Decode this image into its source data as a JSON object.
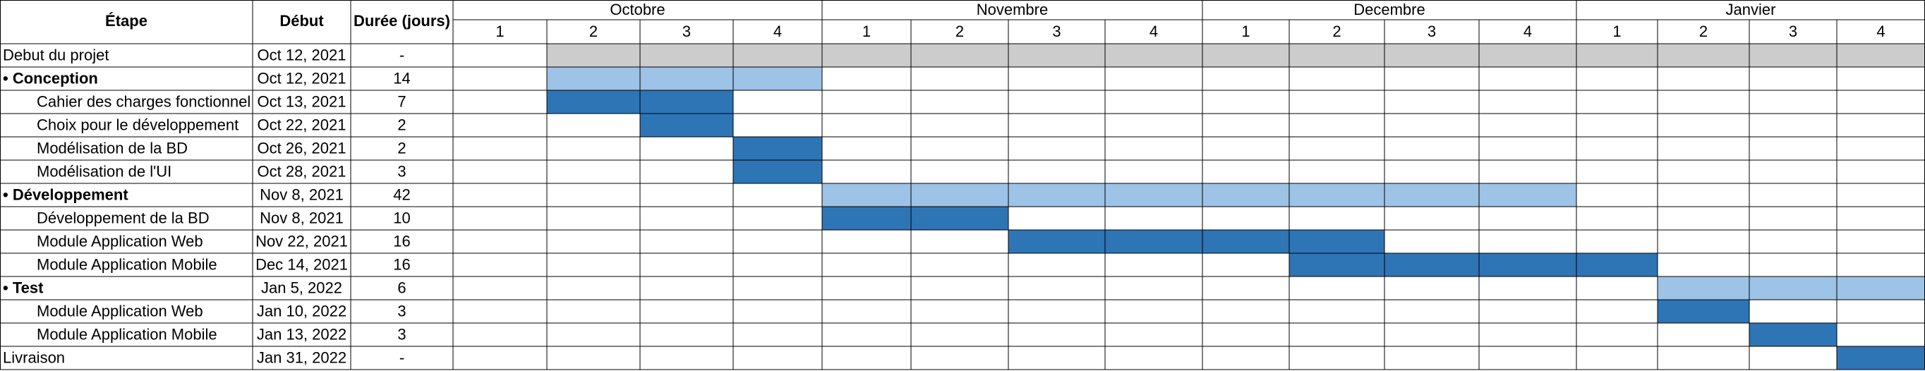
{
  "headers": {
    "task": "Étape",
    "start": "Début",
    "duration": "Durée (jours)"
  },
  "months": [
    {
      "name": "Octobre",
      "weeks": [
        "1",
        "2",
        "3",
        "4"
      ]
    },
    {
      "name": "Novembre",
      "weeks": [
        "1",
        "2",
        "3",
        "4"
      ]
    },
    {
      "name": "Decembre",
      "weeks": [
        "1",
        "2",
        "3",
        "4"
      ]
    },
    {
      "name": "Janvier",
      "weeks": [
        "1",
        "2",
        "3",
        "4"
      ]
    }
  ],
  "colors": {
    "milestone": "#cccccc",
    "phase": "#9dc3e6",
    "task": "#2e75b6",
    "grid": "#000000"
  },
  "chart_data": {
    "type": "table",
    "rows": [
      {
        "label": "Debut du projet",
        "start": "Oct 12, 2021",
        "duration": "-",
        "kind": "milestone",
        "bold": false,
        "bullet": false,
        "indent": false,
        "bar_from": 1,
        "bar_to": 16
      },
      {
        "label": "Conception",
        "start": "Oct 12, 2021",
        "duration": "14",
        "kind": "phase",
        "bold": true,
        "bullet": true,
        "indent": false,
        "bar_from": 1,
        "bar_to": 4
      },
      {
        "label": "Cahier des charges fonctionnel",
        "start": "Oct 13, 2021",
        "duration": "7",
        "kind": "task",
        "bold": false,
        "bullet": false,
        "indent": true,
        "bar_from": 1,
        "bar_to": 3
      },
      {
        "label": "Choix pour le développement",
        "start": "Oct 22, 2021",
        "duration": "2",
        "kind": "task",
        "bold": false,
        "bullet": false,
        "indent": true,
        "bar_from": 2,
        "bar_to": 3
      },
      {
        "label": "Modélisation de la BD",
        "start": "Oct 26, 2021",
        "duration": "2",
        "kind": "task",
        "bold": false,
        "bullet": false,
        "indent": true,
        "bar_from": 3,
        "bar_to": 4
      },
      {
        "label": "Modélisation de l'UI",
        "start": "Oct 28, 2021",
        "duration": "3",
        "kind": "task",
        "bold": false,
        "bullet": false,
        "indent": true,
        "bar_from": 3,
        "bar_to": 4
      },
      {
        "label": "Développement",
        "start": "Nov 8, 2021",
        "duration": "42",
        "kind": "phase",
        "bold": true,
        "bullet": true,
        "indent": false,
        "bar_from": 4,
        "bar_to": 12
      },
      {
        "label": "Développement de la BD",
        "start": "Nov 8, 2021",
        "duration": "10",
        "kind": "task",
        "bold": false,
        "bullet": false,
        "indent": true,
        "bar_from": 4,
        "bar_to": 6
      },
      {
        "label": "Module Application Web",
        "start": "Nov 22, 2021",
        "duration": "16",
        "kind": "task",
        "bold": false,
        "bullet": false,
        "indent": true,
        "bar_from": 6,
        "bar_to": 10
      },
      {
        "label": "Module Application Mobile",
        "start": "Dec 14, 2021",
        "duration": "16",
        "kind": "task",
        "bold": false,
        "bullet": false,
        "indent": true,
        "bar_from": 9,
        "bar_to": 13
      },
      {
        "label": "Test",
        "start": "Jan 5, 2022",
        "duration": "6",
        "kind": "phase",
        "bold": true,
        "bullet": true,
        "indent": false,
        "bar_from": 13,
        "bar_to": 16
      },
      {
        "label": "Module Application Web",
        "start": "Jan 10, 2022",
        "duration": "3",
        "kind": "task",
        "bold": false,
        "bullet": false,
        "indent": true,
        "bar_from": 13,
        "bar_to": 14
      },
      {
        "label": "Module Application Mobile",
        "start": "Jan 13, 2022",
        "duration": "3",
        "kind": "task",
        "bold": false,
        "bullet": false,
        "indent": true,
        "bar_from": 14,
        "bar_to": 15
      },
      {
        "label": "Livraison",
        "start": "Jan 31, 2022",
        "duration": "-",
        "kind": "task",
        "bold": false,
        "bullet": false,
        "indent": false,
        "bar_from": 15,
        "bar_to": 16
      }
    ]
  }
}
